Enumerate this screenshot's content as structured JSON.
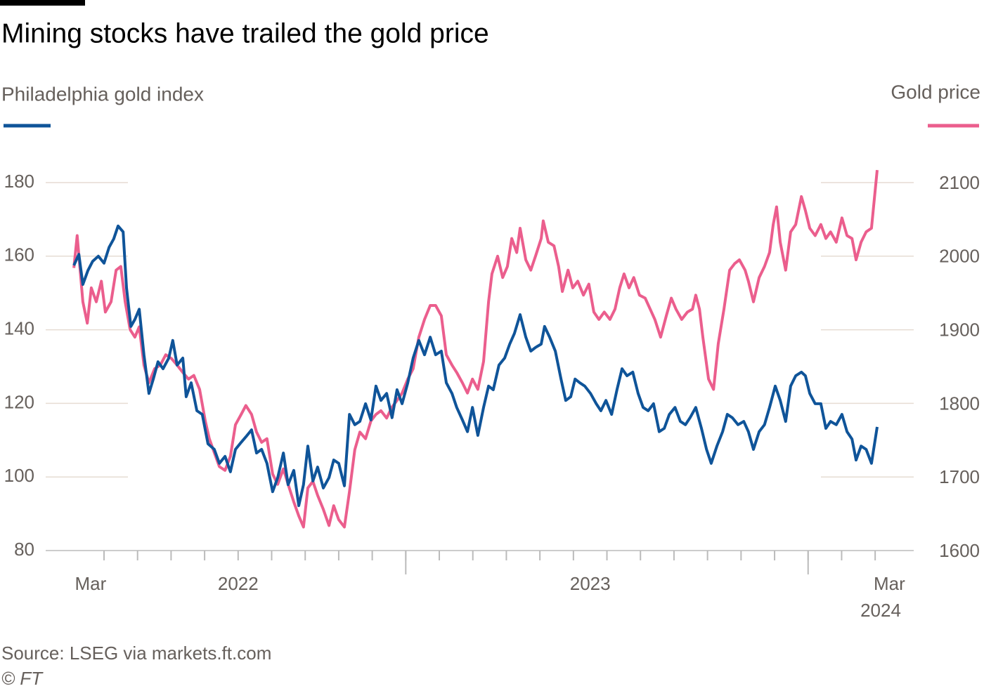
{
  "chart_data": {
    "type": "line",
    "title": "Mining stocks have trailed the gold price",
    "source": "Source: LSEG via markets.ft.com",
    "copyright": "© FT",
    "xlim": [
      -1.74,
      24.15
    ],
    "xticks": [
      {
        "value": -0.4,
        "label": "Mar"
      },
      {
        "value": 4,
        "label": "2022"
      },
      {
        "value": 14.5,
        "label": "2023"
      },
      {
        "value": 23.5,
        "label": "Mar 2024"
      }
    ],
    "xminor_ticks": [
      0,
      1,
      2,
      3,
      4,
      5,
      6,
      7,
      8,
      9,
      10,
      11,
      12,
      13,
      14,
      15,
      16,
      17,
      18,
      19,
      20,
      21,
      22,
      23
    ],
    "xmajor_ticks": [
      9,
      21
    ],
    "ylim": [
      80,
      180
    ],
    "yticks": [
      80,
      100,
      120,
      140,
      160,
      180
    ],
    "y2lim": [
      1600,
      2100
    ],
    "y2ticks": [
      1600,
      1700,
      1800,
      1900,
      2000,
      2100
    ],
    "grid": true,
    "series": [
      {
        "name": "Gold price",
        "color": "#eb5e8d",
        "axis": "y2",
        "x": [
          -0.9,
          -0.8,
          -0.63,
          -0.5,
          -0.38,
          -0.23,
          -0.08,
          0.04,
          0.21,
          0.36,
          0.5,
          0.63,
          0.78,
          0.92,
          1.05,
          1.19,
          1.34,
          1.51,
          1.68,
          1.84,
          2.01,
          2.18,
          2.35,
          2.52,
          2.68,
          2.85,
          3.02,
          3.14,
          3.29,
          3.44,
          3.61,
          3.77,
          3.92,
          4.09,
          4.23,
          4.4,
          4.55,
          4.7,
          4.86,
          5.03,
          5.18,
          5.35,
          5.49,
          5.66,
          5.81,
          5.95,
          6.08,
          6.23,
          6.37,
          6.54,
          6.71,
          6.85,
          7.0,
          7.17,
          7.32,
          7.48,
          7.63,
          7.8,
          7.96,
          8.11,
          8.26,
          8.43,
          8.59,
          8.74,
          8.89,
          9.06,
          9.22,
          9.39,
          9.56,
          9.73,
          9.89,
          10.06,
          10.21,
          10.38,
          10.52,
          10.69,
          10.84,
          10.99,
          11.15,
          11.32,
          11.47,
          11.57,
          11.74,
          11.89,
          12.03,
          12.16,
          12.31,
          12.41,
          12.58,
          12.73,
          12.87,
          13.04,
          13.1,
          13.25,
          13.42,
          13.56,
          13.67,
          13.84,
          13.98,
          14.13,
          14.3,
          14.46,
          14.61,
          14.76,
          14.92,
          15.09,
          15.24,
          15.38,
          15.51,
          15.66,
          15.8,
          15.97,
          16.14,
          16.29,
          16.43,
          16.6,
          16.77,
          16.92,
          17.06,
          17.23,
          17.4,
          17.55,
          17.65,
          17.76,
          17.86,
          18.03,
          18.18,
          18.32,
          18.49,
          18.66,
          18.81,
          18.95,
          19.12,
          19.22,
          19.37,
          19.54,
          19.7,
          19.85,
          19.96,
          20.06,
          20.17,
          20.33,
          20.48,
          20.63,
          20.8,
          20.92,
          21.05,
          21.21,
          21.38,
          21.53,
          21.67,
          21.84,
          22.01,
          22.16,
          22.31,
          22.43,
          22.58,
          22.73,
          22.89,
          23.06
        ],
        "values": [
          1984,
          2028,
          1938,
          1909,
          1957,
          1938,
          1966,
          1924,
          1938,
          1981,
          1986,
          1938,
          1900,
          1890,
          1904,
          1852,
          1828,
          1847,
          1852,
          1866,
          1861,
          1852,
          1842,
          1833,
          1838,
          1819,
          1776,
          1752,
          1733,
          1714,
          1709,
          1728,
          1771,
          1785,
          1797,
          1785,
          1761,
          1747,
          1752,
          1704,
          1690,
          1711,
          1690,
          1666,
          1647,
          1632,
          1685,
          1694,
          1675,
          1656,
          1634,
          1661,
          1642,
          1632,
          1680,
          1737,
          1761,
          1752,
          1776,
          1785,
          1790,
          1780,
          1795,
          1804,
          1814,
          1833,
          1847,
          1890,
          1914,
          1933,
          1933,
          1919,
          1866,
          1852,
          1842,
          1828,
          1814,
          1833,
          1819,
          1857,
          1938,
          1976,
          2000,
          1971,
          1986,
          2024,
          2005,
          2038,
          1995,
          1981,
          2000,
          2024,
          2048,
          2019,
          2014,
          1986,
          1952,
          1981,
          1957,
          1966,
          1947,
          1962,
          1924,
          1914,
          1924,
          1914,
          1928,
          1957,
          1976,
          1957,
          1971,
          1947,
          1943,
          1928,
          1914,
          1890,
          1919,
          1943,
          1928,
          1914,
          1924,
          1928,
          1947,
          1928,
          1890,
          1833,
          1819,
          1881,
          1928,
          1981,
          1990,
          1995,
          1981,
          1966,
          1938,
          1971,
          1986,
          2005,
          2043,
          2067,
          2019,
          1981,
          2033,
          2043,
          2081,
          2062,
          2038,
          2028,
          2043,
          2024,
          2033,
          2019,
          2052,
          2028,
          2024,
          1995,
          2019,
          2033,
          2038,
          2117
        ]
      },
      {
        "name": "Philadelphia gold index",
        "color": "#0f5499",
        "x": [
          -0.9,
          -0.75,
          -0.63,
          -0.48,
          -0.34,
          -0.17,
          0,
          0.15,
          0.29,
          0.42,
          0.57,
          0.67,
          0.8,
          0.92,
          1.05,
          1.19,
          1.34,
          1.47,
          1.61,
          1.76,
          1.93,
          2.05,
          2.18,
          2.35,
          2.45,
          2.6,
          2.77,
          2.93,
          3.1,
          3.29,
          3.44,
          3.61,
          3.77,
          3.92,
          4.09,
          4.23,
          4.4,
          4.55,
          4.7,
          4.86,
          5.03,
          5.18,
          5.35,
          5.49,
          5.66,
          5.81,
          5.95,
          6.08,
          6.23,
          6.37,
          6.54,
          6.71,
          6.85,
          7.0,
          7.17,
          7.32,
          7.48,
          7.63,
          7.8,
          7.96,
          8.11,
          8.26,
          8.43,
          8.59,
          8.74,
          8.89,
          9.06,
          9.22,
          9.39,
          9.56,
          9.73,
          9.89,
          10.06,
          10.21,
          10.38,
          10.52,
          10.69,
          10.84,
          10.99,
          11.15,
          11.32,
          11.47,
          11.61,
          11.78,
          11.95,
          12.1,
          12.24,
          12.41,
          12.58,
          12.73,
          12.87,
          13.04,
          13.14,
          13.29,
          13.46,
          13.63,
          13.77,
          13.92,
          14.05,
          14.19,
          14.34,
          14.51,
          14.68,
          14.82,
          14.97,
          15.14,
          15.3,
          15.45,
          15.6,
          15.77,
          15.93,
          16.08,
          16.23,
          16.39,
          16.56,
          16.71,
          16.86,
          17.03,
          17.19,
          17.34,
          17.48,
          17.65,
          17.82,
          17.97,
          18.11,
          18.28,
          18.45,
          18.59,
          18.74,
          18.91,
          19.08,
          19.22,
          19.37,
          19.54,
          19.7,
          19.85,
          20.02,
          20.17,
          20.33,
          20.48,
          20.63,
          20.8,
          20.92,
          21.05,
          21.21,
          21.38,
          21.53,
          21.67,
          21.84,
          22.01,
          22.16,
          22.31,
          22.43,
          22.58,
          22.73,
          22.89,
          23.06
        ],
        "values": [
          157.5,
          160.5,
          152.3,
          156.1,
          158.6,
          160.0,
          158.1,
          162.4,
          164.7,
          168.2,
          166.6,
          151.4,
          140.9,
          142.8,
          145.6,
          133.2,
          122.7,
          126.6,
          131.3,
          129.4,
          132.3,
          137.1,
          130.4,
          132.3,
          121.8,
          125.6,
          118.0,
          117.0,
          109.0,
          107.5,
          103.7,
          105.6,
          101.4,
          107.5,
          109.4,
          110.9,
          112.8,
          106.5,
          107.5,
          103.7,
          96.0,
          99.8,
          106.5,
          97.9,
          101.8,
          92.2,
          97.9,
          108.4,
          98.9,
          102.7,
          97.0,
          99.8,
          104.6,
          103.7,
          97.6,
          117.0,
          114.2,
          115.1,
          119.9,
          115.5,
          124.7,
          120.8,
          122.7,
          116.1,
          123.7,
          119.9,
          125.6,
          132.3,
          137.1,
          133.2,
          138.0,
          133.2,
          134.2,
          125.6,
          122.7,
          118.9,
          115.5,
          112.3,
          118.9,
          111.3,
          118.9,
          124.7,
          123.7,
          130.4,
          132.3,
          136.1,
          139.0,
          144.1,
          138.0,
          134.2,
          135.2,
          136.1,
          140.9,
          138.0,
          134.2,
          126.6,
          120.8,
          121.8,
          126.6,
          125.6,
          124.7,
          122.7,
          119.9,
          118.0,
          120.8,
          117.0,
          123.7,
          129.4,
          127.5,
          128.5,
          122.7,
          118.9,
          118.0,
          119.9,
          112.3,
          113.2,
          117.0,
          118.9,
          115.1,
          114.2,
          116.1,
          118.9,
          113.2,
          107.5,
          103.7,
          108.4,
          112.3,
          117.0,
          116.1,
          114.2,
          115.1,
          112.3,
          107.5,
          112.3,
          114.2,
          118.9,
          124.7,
          120.8,
          115.1,
          124.7,
          127.5,
          128.5,
          127.5,
          122.7,
          119.9,
          119.9,
          113.2,
          115.1,
          114.2,
          117.0,
          112.3,
          110.3,
          104.6,
          108.4,
          107.5,
          103.7,
          113.6
        ]
      }
    ]
  }
}
